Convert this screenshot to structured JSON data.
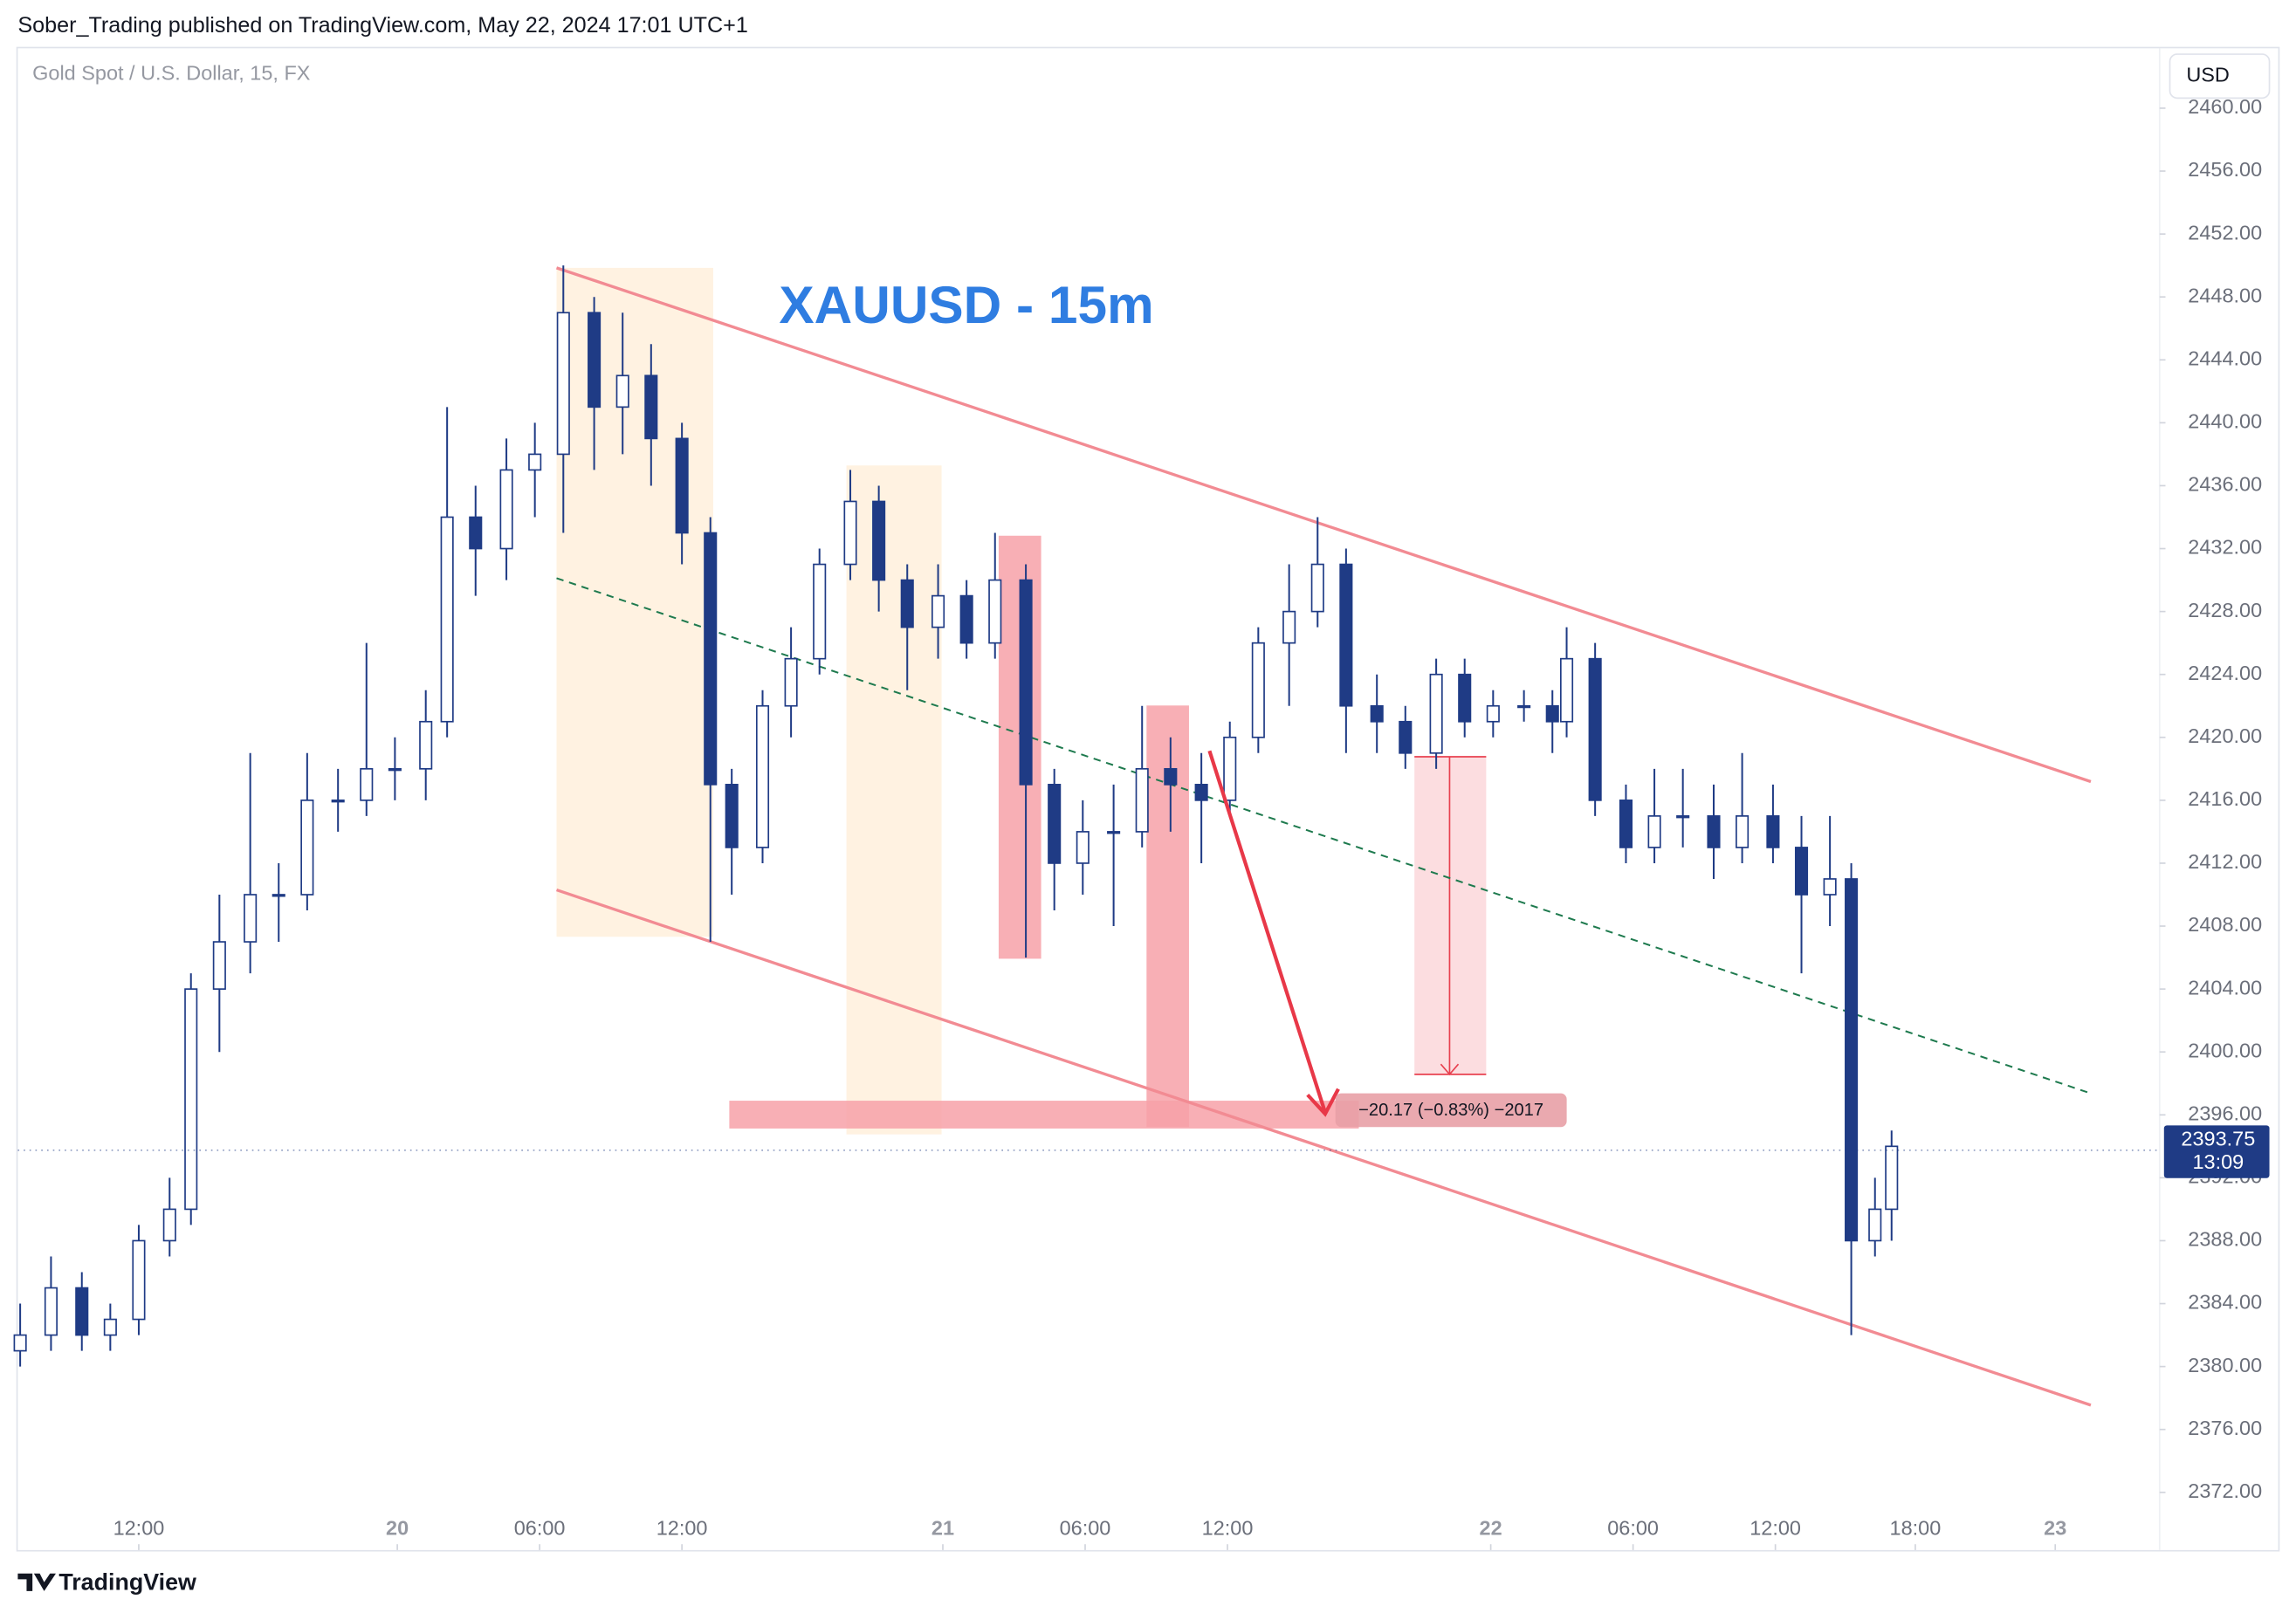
{
  "header": {
    "publisher": "Sober_Trading published on TradingView.com, May 22, 2024 17:01 UTC+1",
    "symbol": "Gold Spot / U.S. Dollar, 15, FX",
    "currency": "USD"
  },
  "chart_data": {
    "type": "candlestick",
    "title": "XAUUSD - 15m",
    "x": [
      0.1,
      1.4,
      2.7,
      3.9,
      5.1,
      6.4,
      7.3,
      8.5,
      9.8,
      11.0,
      12.2,
      13.5,
      14.7,
      15.9,
      17.2,
      18.1,
      19.3,
      20.6,
      21.8,
      23.0,
      24.3,
      25.5,
      26.7,
      28.0,
      29.2,
      30.1,
      31.4,
      32.6,
      33.8,
      35.1,
      36.3,
      37.5,
      38.8,
      40.0,
      41.2,
      42.5,
      43.7,
      44.9,
      46.2,
      47.4,
      48.6,
      49.9,
      51.1,
      52.3,
      53.6,
      54.8,
      56.0,
      57.3,
      58.5,
      59.8,
      61.0,
      62.2,
      63.5,
      64.7,
      65.3,
      66.5,
      67.8,
      69.0,
      70.2,
      71.5,
      72.7,
      74.0,
      75.2,
      76.4,
      77.3,
      78.3,
      79.0
    ],
    "open": [
      2381,
      2382,
      2385,
      2382,
      2383,
      2388,
      2390,
      2404,
      2407,
      2410,
      2410,
      2416,
      2416,
      2418,
      2418,
      2421,
      2434,
      2432,
      2437,
      2438,
      2447,
      2441,
      2443,
      2439,
      2433,
      2417,
      2413,
      2422,
      2425,
      2431,
      2435,
      2430,
      2427,
      2429,
      2426,
      2430,
      2417,
      2412,
      2414,
      2414,
      2418,
      2417,
      2416,
      2420,
      2426,
      2428,
      2431,
      2422,
      2421,
      2419,
      2424,
      2421,
      2422,
      2422,
      2421,
      2425,
      2416,
      2413,
      2415,
      2415,
      2413,
      2415,
      2413,
      2410,
      2411,
      2388,
      2390
    ],
    "high": [
      2384,
      2387,
      2386,
      2384,
      2389,
      2392,
      2405,
      2410,
      2419,
      2412,
      2419,
      2418,
      2426,
      2420,
      2423,
      2441,
      2436,
      2439,
      2440,
      2450,
      2448,
      2447,
      2445,
      2440,
      2434,
      2418,
      2423,
      2427,
      2432,
      2437,
      2436,
      2431,
      2431,
      2430,
      2433,
      2431,
      2418,
      2416,
      2417,
      2422,
      2420,
      2419,
      2421,
      2427,
      2431,
      2434,
      2432,
      2424,
      2422,
      2425,
      2425,
      2423,
      2423,
      2423,
      2427,
      2426,
      2417,
      2418,
      2418,
      2417,
      2419,
      2417,
      2415,
      2415,
      2412,
      2392,
      2395
    ],
    "low": [
      2380,
      2381,
      2381,
      2381,
      2382,
      2387,
      2389,
      2400,
      2405,
      2407,
      2409,
      2414,
      2415,
      2416,
      2416,
      2420,
      2429,
      2430,
      2434,
      2433,
      2437,
      2438,
      2436,
      2431,
      2407,
      2410,
      2412,
      2420,
      2424,
      2430,
      2428,
      2423,
      2425,
      2425,
      2425,
      2406,
      2409,
      2410,
      2408,
      2413,
      2414,
      2412,
      2415,
      2419,
      2422,
      2427,
      2419,
      2419,
      2418,
      2418,
      2420,
      2420,
      2421,
      2419,
      2420,
      2415,
      2412,
      2412,
      2413,
      2411,
      2412,
      2412,
      2405,
      2408,
      2382,
      2387,
      2388
    ],
    "close": [
      2382,
      2385,
      2382,
      2383,
      2388,
      2390,
      2404,
      2407,
      2410,
      2410,
      2416,
      2416,
      2418,
      2418,
      2421,
      2434,
      2432,
      2437,
      2438,
      2447,
      2441,
      2443,
      2439,
      2433,
      2417,
      2413,
      2422,
      2425,
      2431,
      2435,
      2430,
      2427,
      2429,
      2426,
      2430,
      2417,
      2412,
      2414,
      2414,
      2418,
      2417,
      2416,
      2420,
      2426,
      2428,
      2431,
      2422,
      2421,
      2419,
      2424,
      2421,
      2422,
      2422,
      2421,
      2425,
      2416,
      2413,
      2415,
      2415,
      2413,
      2415,
      2413,
      2410,
      2411,
      2388,
      2390,
      2394
    ],
    "up_color": "#ffffff",
    "down_color": "#1f3b85",
    "wick_color": "#1f3b85",
    "xlim": [
      0,
      90.3
    ],
    "xticks": [
      {
        "value": 5.1,
        "label": "12:00"
      },
      {
        "value": 16.0,
        "label": "20"
      },
      {
        "value": 22.0,
        "label": "06:00"
      },
      {
        "value": 28.0,
        "label": "12:00"
      },
      {
        "value": 39.0,
        "label": "21"
      },
      {
        "value": 45.0,
        "label": "06:00"
      },
      {
        "value": 51.0,
        "label": "12:00"
      },
      {
        "value": 62.1,
        "label": "22"
      },
      {
        "value": 68.1,
        "label": "06:00"
      },
      {
        "value": 74.1,
        "label": "12:00"
      },
      {
        "value": 80.0,
        "label": "18:00"
      },
      {
        "value": 85.9,
        "label": "23"
      }
    ],
    "ylim": [
      2370.1,
      2463.9
    ],
    "yticks": [
      {
        "value": 2372,
        "label": "2372.00"
      },
      {
        "value": 2376,
        "label": "2376.00"
      },
      {
        "value": 2380,
        "label": "2380.00"
      },
      {
        "value": 2384,
        "label": "2384.00"
      },
      {
        "value": 2388,
        "label": "2388.00"
      },
      {
        "value": 2392,
        "label": "2392.00"
      },
      {
        "value": 2396,
        "label": "2396.00"
      },
      {
        "value": 2400,
        "label": "2400.00"
      },
      {
        "value": 2404,
        "label": "2404.00"
      },
      {
        "value": 2408,
        "label": "2408.00"
      },
      {
        "value": 2412,
        "label": "2412.00"
      },
      {
        "value": 2416,
        "label": "2416.00"
      },
      {
        "value": 2420,
        "label": "2420.00"
      },
      {
        "value": 2424,
        "label": "2424.00"
      },
      {
        "value": 2428,
        "label": "2428.00"
      },
      {
        "value": 2432,
        "label": "2432.00"
      },
      {
        "value": 2436,
        "label": "2436.00"
      },
      {
        "value": 2440,
        "label": "2440.00"
      },
      {
        "value": 2444,
        "label": "2444.00"
      },
      {
        "value": 2448,
        "label": "2448.00"
      },
      {
        "value": 2452,
        "label": "2452.00"
      },
      {
        "value": 2456,
        "label": "2456.00"
      },
      {
        "value": 2460,
        "label": "2460.00"
      }
    ],
    "last_price": 2393.75,
    "countdown": "13:09",
    "last_price_color": "#1f3b85",
    "measure_label": "−20.17 (−0.83%) −2017"
  },
  "footer": {
    "brand": "TradingView"
  }
}
